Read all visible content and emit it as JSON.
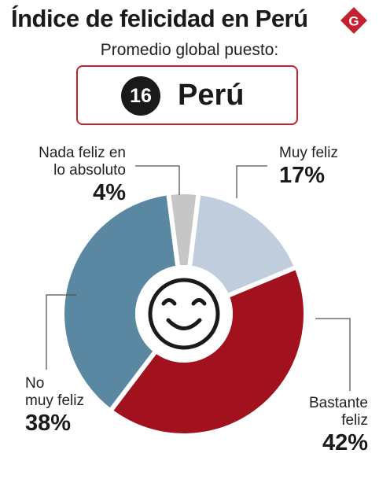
{
  "header": {
    "title": "Índice de felicidad en Perú",
    "logo_letter": "G",
    "subtitle": "Promedio global puesto:"
  },
  "rank": {
    "position": "16",
    "country": "Perú"
  },
  "colors": {
    "muy_feliz": "#bfcddc",
    "bastante_feliz": "#a2111e",
    "no_muy_feliz": "#5a88a2",
    "nada_feliz": "#c6c6c6",
    "accent": "#c4202f"
  },
  "icons": {
    "center": "smiley-face-icon",
    "logo": "gestion-logo-icon"
  },
  "chart_data": {
    "type": "pie",
    "variant": "donut",
    "slices": [
      {
        "label": "Muy feliz",
        "value": 17,
        "display": "17%",
        "color": "#bfcddc"
      },
      {
        "label": "Bastante\nfeliz",
        "value": 42,
        "display": "42%",
        "color": "#a2111e"
      },
      {
        "label": "No\nmuy feliz",
        "value": 38,
        "display": "38%",
        "color": "#5a88a2"
      },
      {
        "label": "Nada feliz en\nlo absoluto",
        "value": 4,
        "display": "4%",
        "color": "#c6c6c6"
      }
    ]
  }
}
